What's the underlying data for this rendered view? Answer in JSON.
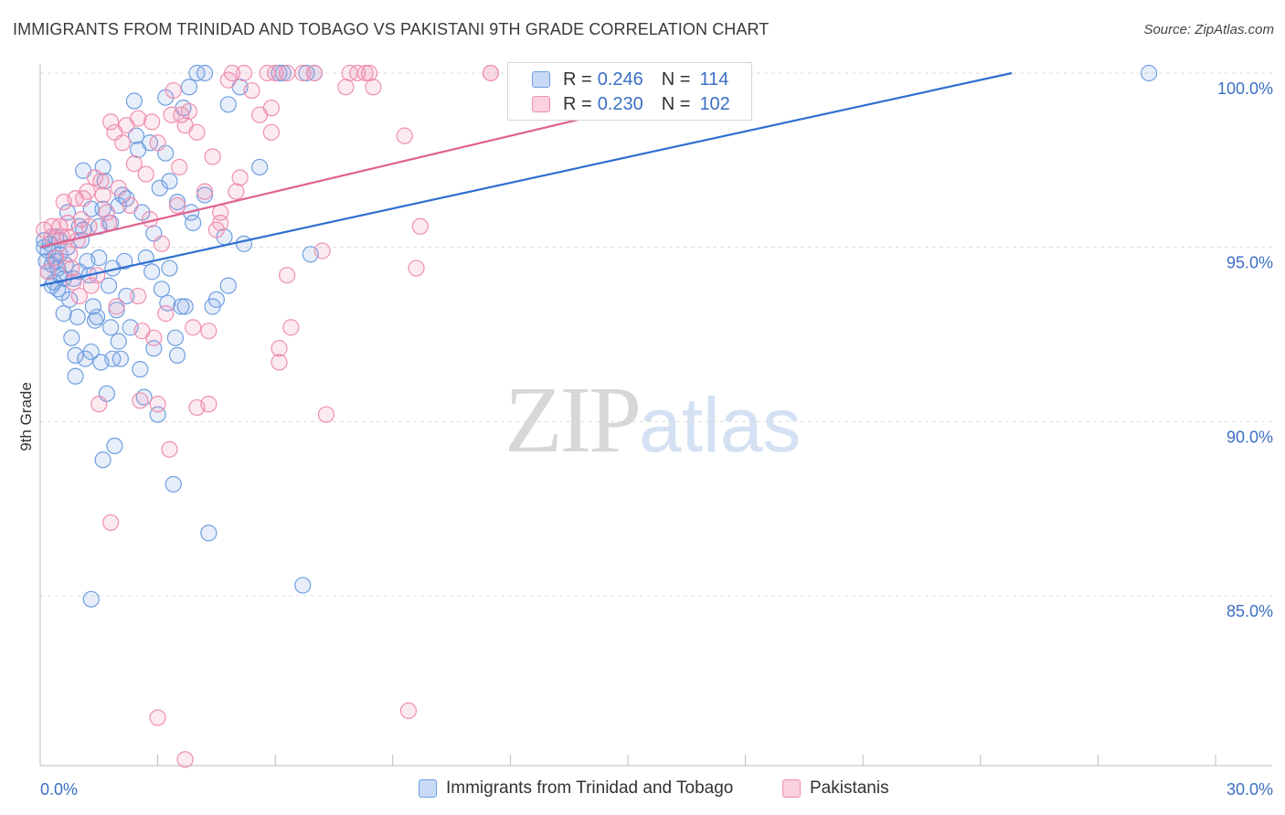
{
  "title": "IMMIGRANTS FROM TRINIDAD AND TOBAGO VS PAKISTANI 9TH GRADE CORRELATION CHART",
  "source": "Source: ZipAtlas.com",
  "watermark": {
    "zip": "ZIP",
    "atlas": "atlas"
  },
  "legend": {
    "r_label": "R =",
    "n_label": "N =",
    "rows": [
      {
        "r": "0.246",
        "n": "114",
        "color": "#6f9fe0"
      },
      {
        "r": "0.230",
        "n": "102",
        "color": "#ef8fb0"
      }
    ]
  },
  "bottom_legend": [
    {
      "label": "Immigrants from Trinidad and Tobago",
      "color": "#6f9fe0"
    },
    {
      "label": "Pakistanis",
      "color": "#ef8fb0"
    }
  ],
  "chart_data": {
    "type": "scatter",
    "title": "IMMIGRANTS FROM TRINIDAD AND TOBAGO VS PAKISTANI 9TH GRADE CORRELATION CHART",
    "xlabel": "",
    "ylabel": "9th Grade",
    "xlim": [
      0,
      30
    ],
    "ylim": [
      80.5,
      100.5
    ],
    "x_tick_labels": [
      "0.0%",
      "30.0%"
    ],
    "y_ticks": [
      100,
      95,
      90,
      85
    ],
    "y_tick_labels": [
      "100.0%",
      "95.0%",
      "90.0%",
      "85.0%"
    ],
    "grid": true,
    "series": [
      {
        "name": "Immigrants from Trinidad and Tobago",
        "color": "#6f9fe0",
        "line_color": "#2f6fd0",
        "trend": [
          [
            0,
            93.9
          ],
          [
            24.8,
            100.0
          ]
        ],
        "points": [
          [
            0.1,
            95.0
          ],
          [
            0.1,
            95.2
          ],
          [
            0.15,
            94.6
          ],
          [
            0.2,
            94.3
          ],
          [
            0.2,
            94.9
          ],
          [
            0.25,
            95.1
          ],
          [
            0.3,
            94.5
          ],
          [
            0.3,
            93.9
          ],
          [
            0.35,
            94.7
          ],
          [
            0.4,
            95.3
          ],
          [
            0.45,
            94.4
          ],
          [
            0.5,
            94.8
          ],
          [
            0.5,
            94.2
          ],
          [
            0.55,
            93.7
          ],
          [
            0.6,
            93.1
          ],
          [
            0.65,
            94.5
          ],
          [
            0.7,
            95.0
          ],
          [
            0.7,
            96.0
          ],
          [
            0.75,
            93.5
          ],
          [
            0.8,
            92.4
          ],
          [
            0.85,
            94.1
          ],
          [
            0.9,
            91.9
          ],
          [
            0.9,
            91.3
          ],
          [
            0.95,
            93.0
          ],
          [
            1.0,
            95.6
          ],
          [
            1.0,
            94.3
          ],
          [
            1.05,
            95.2
          ],
          [
            1.1,
            97.2
          ],
          [
            1.1,
            95.5
          ],
          [
            1.15,
            91.8
          ],
          [
            1.2,
            94.6
          ],
          [
            1.25,
            94.2
          ],
          [
            1.3,
            92.0
          ],
          [
            1.3,
            96.1
          ],
          [
            1.35,
            93.3
          ],
          [
            1.4,
            92.9
          ],
          [
            1.45,
            93.0
          ],
          [
            1.5,
            95.6
          ],
          [
            1.5,
            94.7
          ],
          [
            1.55,
            91.7
          ],
          [
            1.6,
            96.1
          ],
          [
            1.6,
            97.3
          ],
          [
            1.65,
            96.9
          ],
          [
            1.7,
            90.8
          ],
          [
            1.75,
            93.9
          ],
          [
            1.8,
            92.7
          ],
          [
            1.8,
            95.7
          ],
          [
            1.85,
            94.4
          ],
          [
            1.85,
            91.8
          ],
          [
            1.9,
            89.3
          ],
          [
            1.95,
            93.2
          ],
          [
            2.0,
            96.2
          ],
          [
            2.0,
            92.3
          ],
          [
            2.05,
            91.8
          ],
          [
            2.1,
            96.5
          ],
          [
            2.15,
            94.6
          ],
          [
            2.2,
            96.4
          ],
          [
            2.2,
            93.6
          ],
          [
            2.3,
            92.7
          ],
          [
            2.4,
            99.2
          ],
          [
            2.45,
            98.2
          ],
          [
            2.5,
            97.8
          ],
          [
            2.55,
            91.5
          ],
          [
            2.6,
            96.0
          ],
          [
            2.65,
            90.7
          ],
          [
            2.7,
            94.7
          ],
          [
            2.8,
            98.0
          ],
          [
            2.85,
            94.3
          ],
          [
            2.9,
            92.1
          ],
          [
            2.9,
            95.4
          ],
          [
            3.0,
            90.2
          ],
          [
            3.05,
            96.7
          ],
          [
            3.1,
            93.8
          ],
          [
            3.2,
            99.3
          ],
          [
            3.2,
            97.7
          ],
          [
            3.25,
            93.4
          ],
          [
            3.3,
            96.9
          ],
          [
            3.3,
            94.4
          ],
          [
            3.4,
            88.2
          ],
          [
            3.45,
            92.4
          ],
          [
            3.5,
            96.3
          ],
          [
            3.5,
            91.9
          ],
          [
            3.6,
            93.3
          ],
          [
            3.65,
            99.0
          ],
          [
            3.7,
            93.3
          ],
          [
            3.8,
            99.6
          ],
          [
            3.85,
            96.0
          ],
          [
            3.9,
            95.7
          ],
          [
            4.0,
            100.0
          ],
          [
            4.2,
            96.5
          ],
          [
            4.2,
            100.0
          ],
          [
            4.3,
            86.8
          ],
          [
            4.4,
            93.3
          ],
          [
            4.5,
            93.5
          ],
          [
            4.7,
            95.3
          ],
          [
            4.8,
            93.9
          ],
          [
            4.8,
            99.1
          ],
          [
            5.1,
            99.6
          ],
          [
            5.2,
            95.1
          ],
          [
            5.6,
            97.3
          ],
          [
            6.1,
            100.0
          ],
          [
            6.2,
            100.0
          ],
          [
            6.8,
            100.0
          ],
          [
            6.9,
            94.8
          ],
          [
            6.7,
            85.3
          ],
          [
            7.0,
            100.0
          ],
          [
            1.3,
            84.9
          ],
          [
            1.6,
            88.9
          ],
          [
            0.4,
            94.6
          ],
          [
            0.5,
            95.2
          ],
          [
            0.6,
            94.1
          ],
          [
            0.45,
            93.8
          ],
          [
            0.35,
            94.0
          ],
          [
            28.3,
            100.0
          ]
        ]
      },
      {
        "name": "Pakistanis",
        "color": "#ef8fb0",
        "line_color": "#e0608f",
        "trend": [
          [
            0,
            95.0
          ],
          [
            15.0,
            99.0
          ]
        ],
        "points": [
          [
            0.1,
            95.5
          ],
          [
            0.2,
            94.3
          ],
          [
            0.3,
            95.3
          ],
          [
            0.4,
            94.7
          ],
          [
            0.5,
            95.6
          ],
          [
            0.55,
            95.3
          ],
          [
            0.6,
            96.3
          ],
          [
            0.7,
            95.7
          ],
          [
            0.75,
            94.8
          ],
          [
            0.8,
            94.4
          ],
          [
            0.85,
            94.0
          ],
          [
            0.9,
            96.4
          ],
          [
            0.95,
            95.2
          ],
          [
            1.0,
            93.6
          ],
          [
            1.05,
            95.8
          ],
          [
            1.1,
            96.4
          ],
          [
            1.2,
            96.6
          ],
          [
            1.25,
            95.6
          ],
          [
            1.3,
            93.9
          ],
          [
            1.4,
            97.0
          ],
          [
            1.45,
            94.2
          ],
          [
            1.5,
            90.5
          ],
          [
            1.55,
            96.9
          ],
          [
            1.6,
            96.5
          ],
          [
            1.7,
            96.0
          ],
          [
            1.75,
            95.7
          ],
          [
            1.8,
            98.6
          ],
          [
            1.8,
            87.1
          ],
          [
            1.9,
            98.3
          ],
          [
            1.95,
            93.3
          ],
          [
            2.0,
            96.7
          ],
          [
            2.1,
            98.0
          ],
          [
            2.2,
            98.5
          ],
          [
            2.3,
            96.2
          ],
          [
            2.4,
            97.4
          ],
          [
            2.5,
            98.7
          ],
          [
            2.5,
            93.6
          ],
          [
            2.55,
            90.6
          ],
          [
            2.6,
            92.6
          ],
          [
            2.7,
            97.1
          ],
          [
            2.8,
            95.8
          ],
          [
            2.85,
            98.6
          ],
          [
            2.9,
            92.4
          ],
          [
            3.0,
            90.5
          ],
          [
            3.0,
            98.0
          ],
          [
            3.1,
            95.1
          ],
          [
            3.2,
            93.1
          ],
          [
            3.3,
            89.2
          ],
          [
            3.35,
            98.8
          ],
          [
            3.4,
            99.5
          ],
          [
            3.5,
            96.2
          ],
          [
            3.55,
            97.3
          ],
          [
            3.6,
            98.8
          ],
          [
            3.7,
            98.5
          ],
          [
            3.8,
            98.9
          ],
          [
            3.9,
            92.7
          ],
          [
            4.0,
            90.4
          ],
          [
            4.0,
            98.3
          ],
          [
            4.2,
            96.6
          ],
          [
            4.3,
            90.5
          ],
          [
            4.3,
            92.6
          ],
          [
            4.4,
            97.6
          ],
          [
            4.5,
            95.5
          ],
          [
            4.6,
            95.7
          ],
          [
            4.6,
            96.0
          ],
          [
            4.8,
            99.8
          ],
          [
            4.9,
            100.0
          ],
          [
            5.0,
            96.6
          ],
          [
            5.1,
            97.0
          ],
          [
            5.2,
            100.0
          ],
          [
            5.4,
            99.5
          ],
          [
            5.6,
            98.8
          ],
          [
            5.8,
            100.0
          ],
          [
            5.9,
            99.0
          ],
          [
            5.9,
            98.3
          ],
          [
            6.0,
            100.0
          ],
          [
            6.1,
            92.1
          ],
          [
            6.1,
            91.7
          ],
          [
            6.3,
            94.2
          ],
          [
            6.3,
            100.0
          ],
          [
            6.4,
            92.7
          ],
          [
            6.7,
            100.0
          ],
          [
            7.0,
            100.0
          ],
          [
            7.2,
            94.9
          ],
          [
            7.3,
            90.2
          ],
          [
            7.8,
            99.6
          ],
          [
            7.9,
            100.0
          ],
          [
            8.1,
            100.0
          ],
          [
            8.3,
            100.0
          ],
          [
            8.4,
            100.0
          ],
          [
            8.5,
            99.6
          ],
          [
            9.3,
            98.2
          ],
          [
            9.6,
            94.4
          ],
          [
            9.7,
            95.6
          ],
          [
            11.5,
            100.0
          ],
          [
            11.5,
            100.0
          ],
          [
            3.0,
            81.5
          ],
          [
            3.7,
            80.3
          ],
          [
            9.4,
            81.7
          ],
          [
            0.7,
            95.3
          ],
          [
            0.3,
            95.6
          ],
          [
            12.3,
            100.0
          ]
        ]
      }
    ]
  }
}
